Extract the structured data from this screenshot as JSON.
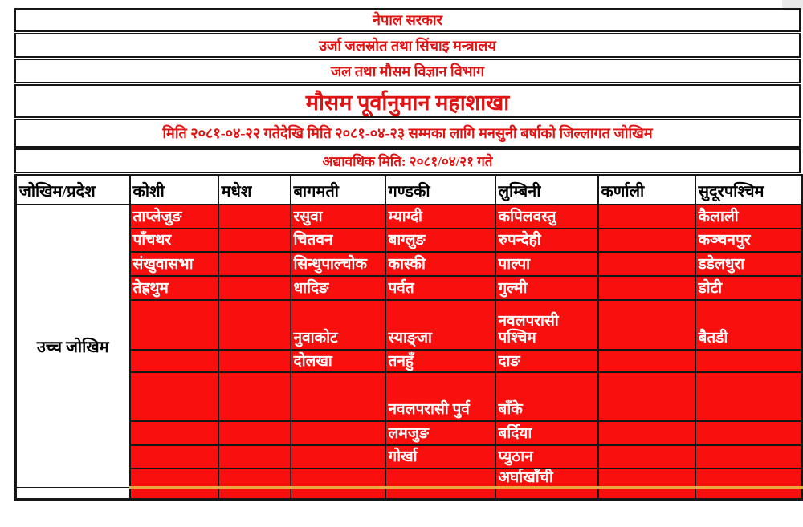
{
  "header_rows": [
    "नेपाल सरकार",
    "उर्जा जलस्रोत तथा सिंचाइ मन्त्रालय",
    "जल तथा मौसम विज्ञान विभाग",
    "मौसम पूर्वानुमान महाशाखा",
    "मिति २०८१-०४-२२ गतेदेखि मिति २०८१-०४-२३ सम्मका लागि मनसुनी बर्षाको जिल्लागत जोखिम",
    "अद्यावधिक मिति: २०८१/०४/२१ गते"
  ],
  "table": {
    "columns": [
      "जोखिम/प्रदेश",
      "कोशी",
      "मधेश",
      "बागमती",
      "गण्डकी",
      "लुम्बिनी",
      "कर्णाली",
      "सुदूरपश्चिम"
    ],
    "risk_label": "उच्च जोखिम",
    "rows": [
      [
        "ताप्लेजुङ",
        "",
        "रसुवा",
        "म्याग्दी",
        "कपिलवस्तु",
        "",
        "कैलाली"
      ],
      [
        "पाँचथर",
        "",
        "चितवन",
        "बाग्लुङ",
        "रुपन्देही",
        "",
        "कञ्चनपुर"
      ],
      [
        "संखुवासभा",
        "",
        "सिन्धुपाल्चोक",
        "कास्की",
        "पाल्पा",
        "",
        "डडेलधुरा"
      ],
      [
        "तेह्रथुम",
        "",
        "धादिङ",
        "पर्वत",
        "गुल्मी",
        "",
        "डोटी"
      ],
      [
        "",
        "",
        "नुवाकोट",
        "स्याङ्जा",
        "नवलपरासी पश्चिम",
        "",
        "बैतडी"
      ],
      [
        "",
        "",
        "दोलखा",
        "तनहुँ",
        "दाङ",
        "",
        ""
      ],
      [
        "",
        "",
        "",
        "नवलपरासी पुर्व",
        "बाँके",
        "",
        ""
      ],
      [
        "",
        "",
        "",
        "लमजुङ",
        "बर्दिया",
        "",
        ""
      ],
      [
        "",
        "",
        "",
        "गोर्खा",
        "प्युठान",
        "",
        ""
      ],
      [
        "",
        "",
        "",
        "",
        "अर्घाखाँची",
        "",
        ""
      ]
    ]
  },
  "colors": {
    "red_text": "#e01212",
    "cell_red": "#fa0f0f",
    "cell_text": "#ffffff",
    "border_black": "#161616",
    "next_block_orange": "#e8a83e",
    "background": "#ffffff"
  }
}
